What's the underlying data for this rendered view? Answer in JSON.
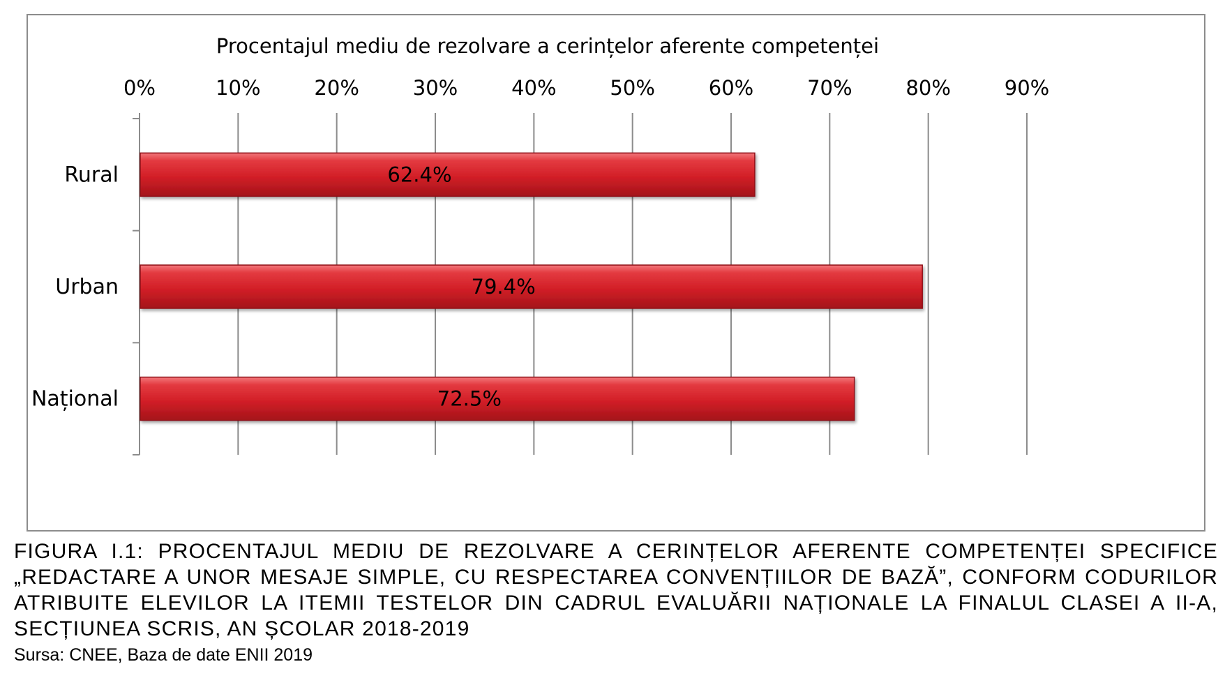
{
  "chart_data": {
    "type": "bar",
    "orientation": "horizontal",
    "title": "Procentajul mediu de rezolvare a cerințelor aferente competenței",
    "categories": [
      "Rural",
      "Urban",
      "Național"
    ],
    "values": [
      62.4,
      79.4,
      72.5
    ],
    "data_labels": [
      "62.4%",
      "79.4%",
      "72.5%"
    ],
    "xlim": [
      0,
      90
    ],
    "x_ticks": [
      0,
      10,
      20,
      30,
      40,
      50,
      60,
      70,
      80,
      90
    ],
    "x_tick_labels": [
      "0%",
      "10%",
      "20%",
      "30%",
      "40%",
      "50%",
      "60%",
      "70%",
      "80%",
      "90%"
    ],
    "x_axis_position": "top",
    "grid": true,
    "legend": "none",
    "bar_color": "#d8232a"
  },
  "caption": {
    "figure_text": "FIGURA I.1: PROCENTAJUL MEDIU DE REZOLVARE A CERINȚELOR AFERENTE COMPETENȚEI SPECIFICE „REDACTARE A UNOR MESAJE SIMPLE, CU RESPECTAREA CONVENȚIILOR DE BAZĂ”, CONFORM CODURILOR ATRIBUITE ELEVILOR LA ITEMII TESTELOR DIN CADRUL EVALUĂRII NAȚIONALE LA FINALUL CLASEI A II-A, SECȚIUNEA SCRIS, AN ȘCOLAR 2018-2019",
    "source_text": "Sursa: CNEE, Baza de date ENII 2019"
  }
}
